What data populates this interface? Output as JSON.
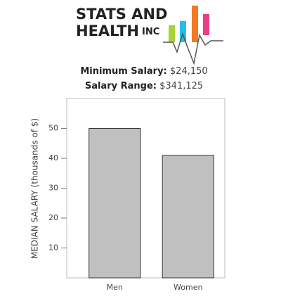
{
  "logo": {
    "line1": "STATS AND",
    "line2": "HEALTH",
    "suffix": "INC"
  },
  "summary": [
    {
      "label": "Minimum Salary:",
      "value": "$24,150"
    },
    {
      "label": "Salary Range:",
      "value": "$341,125"
    }
  ],
  "chart_data": {
    "type": "bar",
    "categories": [
      "Men",
      "Women"
    ],
    "values": [
      50,
      41
    ],
    "color": "#c0c0c0",
    "y_label": "MEDIAN SALARY (thousands of $)",
    "ylim": [
      0,
      60
    ],
    "yticks": [
      10,
      20,
      30,
      40,
      50
    ],
    "grid": false
  }
}
